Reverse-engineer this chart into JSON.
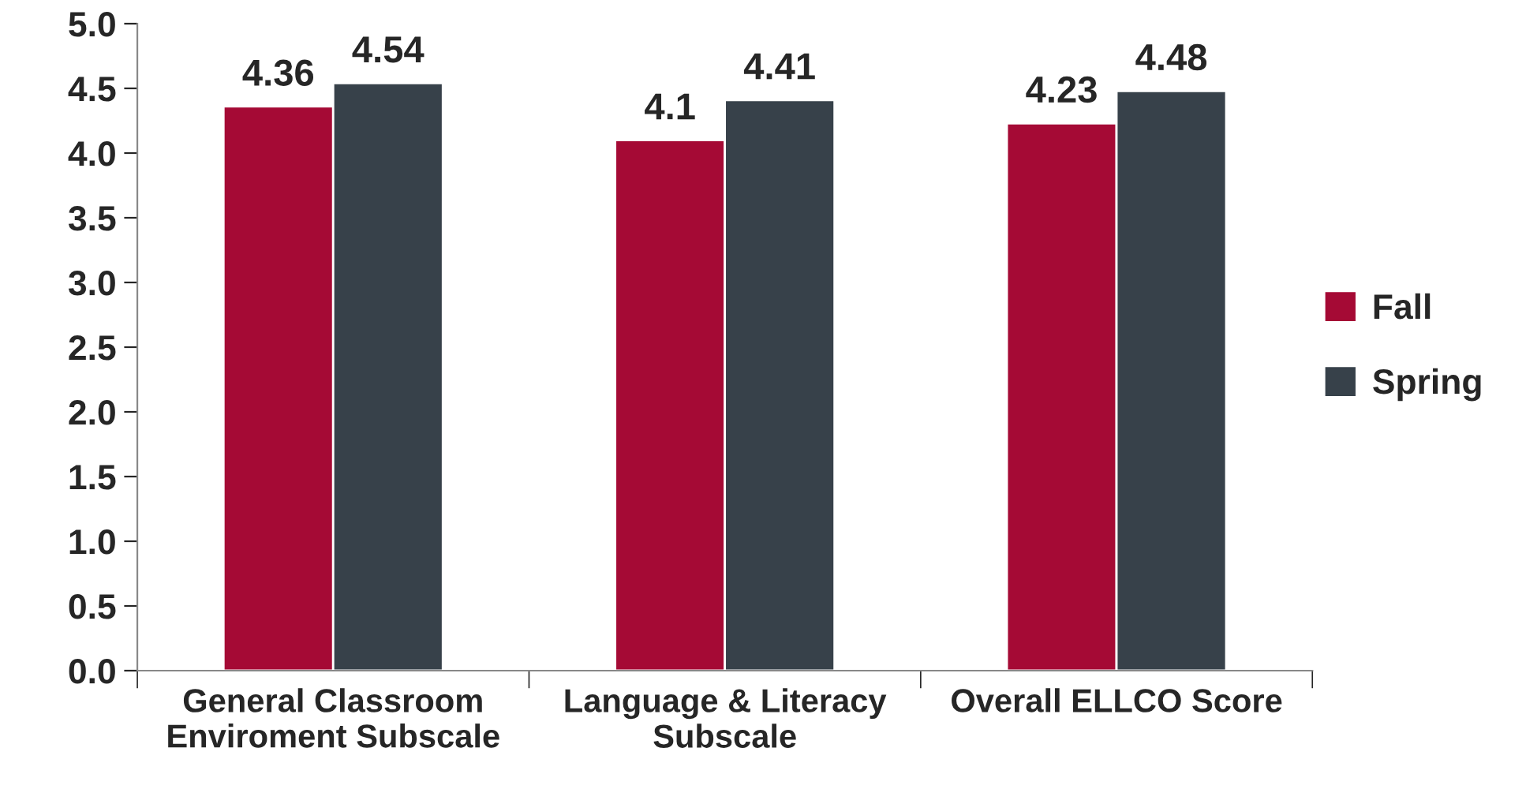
{
  "chart_data": {
    "type": "bar",
    "categories": [
      "General Classroom\nEnviroment Subscale",
      "Language & Literacy\nSubscale",
      "Overall ELLCO Score"
    ],
    "series": [
      {
        "name": "Fall",
        "color": "#a50a35",
        "values": [
          4.36,
          4.1,
          4.23
        ]
      },
      {
        "name": "Spring",
        "color": "#37414a",
        "values": [
          4.54,
          4.41,
          4.48
        ]
      }
    ],
    "ylim": [
      0,
      5
    ],
    "yticks": [
      {
        "value": 0,
        "label": "0.0"
      },
      {
        "value": 0.5,
        "label": "0.5"
      },
      {
        "value": 1,
        "label": "1.0"
      },
      {
        "value": 1.5,
        "label": "1.5"
      },
      {
        "value": 2,
        "label": "2.0"
      },
      {
        "value": 2.5,
        "label": "2.5"
      },
      {
        "value": 3,
        "label": "3.0"
      },
      {
        "value": 3.5,
        "label": "3.5"
      },
      {
        "value": 4,
        "label": "4.0"
      },
      {
        "value": 4.5,
        "label": "4.5"
      },
      {
        "value": 5,
        "label": "5.0"
      }
    ],
    "data_labels": true,
    "legend": "right",
    "grid": false
  }
}
